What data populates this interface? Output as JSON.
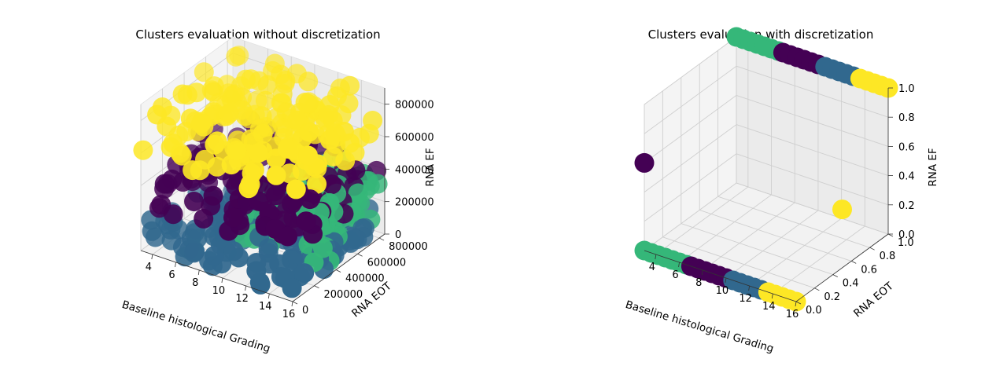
{
  "chart_data": [
    {
      "type": "scatter",
      "title": "Clusters evaluation without discretization",
      "xlabel": "Baseline histological Grading",
      "ylabel": "RNA EOT",
      "zlabel": "RNA EF",
      "x_ticks": [
        "4",
        "6",
        "8",
        "10",
        "12",
        "14",
        "16"
      ],
      "y_ticks": [
        "0",
        "200000",
        "400000",
        "600000",
        "800000"
      ],
      "z_ticks": [
        "0",
        "200000",
        "400000",
        "600000",
        "800000"
      ],
      "xlim": [
        3,
        16
      ],
      "ylim": [
        0,
        850000
      ],
      "zlim": [
        0,
        900000
      ],
      "grid": true,
      "series": [
        {
          "color": "#31688e",
          "x_range": [
            3,
            16
          ],
          "y_range": [
            0,
            850000
          ],
          "z_range": [
            0,
            150000
          ]
        },
        {
          "color": "#35b779",
          "x_range": [
            9,
            16
          ],
          "y_range": [
            300000,
            850000
          ],
          "z_range": [
            50000,
            400000
          ]
        },
        {
          "color": "#440154",
          "x_range": [
            3,
            16
          ],
          "y_range": [
            0,
            850000
          ],
          "z_range": [
            250000,
            500000
          ]
        },
        {
          "color": "#fde725",
          "x_range": [
            3,
            16
          ],
          "y_range": [
            0,
            850000
          ],
          "z_range": [
            550000,
            900000
          ]
        }
      ]
    },
    {
      "type": "scatter",
      "title": "Clusters evaluation with discretization",
      "xlabel": "Baseline histological Grading",
      "ylabel": "RNA EOT",
      "zlabel": "RNA EF",
      "x_ticks": [
        "4",
        "6",
        "8",
        "10",
        "12",
        "14",
        "16"
      ],
      "y_ticks": [
        "0.0",
        "0.2",
        "0.4",
        "0.6",
        "0.8",
        "1.0"
      ],
      "z_ticks": [
        "0.0",
        "0.2",
        "0.4",
        "0.6",
        "0.8",
        "1.0"
      ],
      "xlim": [
        3,
        16
      ],
      "ylim": [
        0,
        1
      ],
      "zlim": [
        0,
        1
      ],
      "grid": true,
      "series": [
        {
          "color": "#35b779",
          "x": [
            3,
            3.6,
            4.2,
            4.8,
            5.4,
            6,
            6.6,
            3,
            3.6,
            4.2,
            4.8,
            5.4,
            6,
            6.6
          ],
          "y": [
            0,
            0,
            0,
            0,
            0,
            0,
            0,
            1,
            1,
            1,
            1,
            1,
            1,
            1
          ],
          "z": [
            0,
            0,
            0,
            0,
            0,
            0,
            0,
            1,
            1,
            1,
            1,
            1,
            1,
            1
          ]
        },
        {
          "color": "#440154",
          "x": [
            7,
            7.6,
            8.2,
            8.8,
            9.4,
            10,
            7,
            7.6,
            8.2,
            8.8,
            9.4,
            10,
            3
          ],
          "y": [
            0,
            0,
            0,
            0,
            0,
            0,
            1,
            1,
            1,
            1,
            1,
            1,
            0
          ],
          "z": [
            0,
            0,
            0,
            0,
            0,
            0,
            1,
            1,
            1,
            1,
            1,
            1,
            0.6
          ]
        },
        {
          "color": "#31688e",
          "x": [
            10.6,
            11.2,
            11.8,
            12.4,
            13,
            10.6,
            11.2,
            11.8,
            12.4,
            13
          ],
          "y": [
            0,
            0,
            0,
            0,
            0,
            1,
            1,
            1,
            1,
            1
          ],
          "z": [
            0,
            0,
            0,
            0,
            0,
            1,
            1,
            1,
            1,
            1
          ]
        },
        {
          "color": "#fde725",
          "x": [
            13.6,
            14.2,
            14.8,
            15.4,
            16,
            13.6,
            14.2,
            14.8,
            15.4,
            16,
            16
          ],
          "y": [
            0,
            0,
            0,
            0,
            0,
            1,
            1,
            1,
            1,
            1,
            0.5
          ],
          "z": [
            0,
            0,
            0,
            0,
            0,
            1,
            1,
            1,
            1,
            1,
            0.4
          ]
        }
      ]
    }
  ]
}
